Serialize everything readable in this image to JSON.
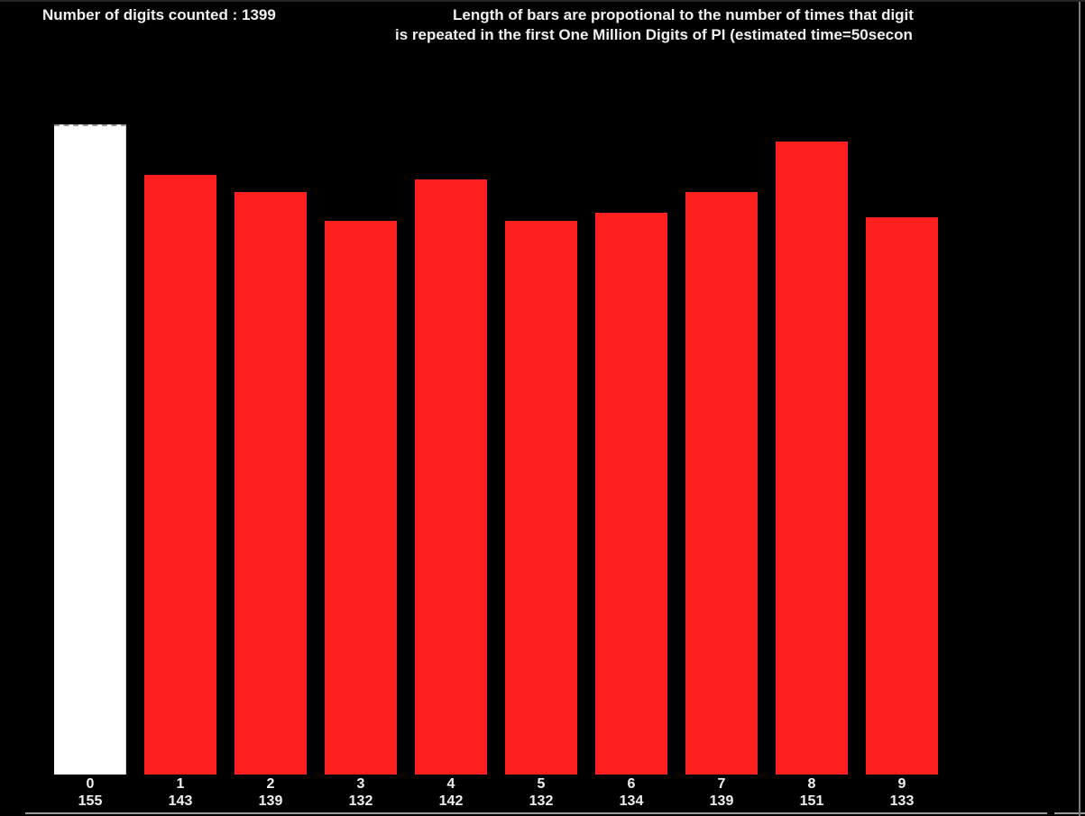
{
  "window": {
    "background": "#000000",
    "frame_edge_color": "#9a9a9a",
    "frame_right_color": "#7d7d7d"
  },
  "header": {
    "left_title": "Number of digits counted : 1399",
    "digits_counted": 1399,
    "right_title_line1": "Length of bars are propotional to the number of times that digit",
    "right_title_line2": "is repeated in the first One Million Digits of PI (estimated time=50secon",
    "text_color": "#f0f0f0"
  },
  "chart_data": {
    "type": "bar",
    "title": "Length of bars are propotional to the number of times that digit is repeated in the first One Million Digits of PI (estimated time=50secon",
    "categories": [
      "0",
      "1",
      "2",
      "3",
      "4",
      "5",
      "6",
      "7",
      "8",
      "9"
    ],
    "values": [
      155,
      143,
      139,
      132,
      142,
      132,
      134,
      139,
      151,
      133
    ],
    "xlabel": "",
    "ylabel": "",
    "legend": "none",
    "grid": false,
    "background": "#000000",
    "bar_color": "#ff1f1f",
    "highlight_bar": {
      "category": "0",
      "color": "#ffffff"
    },
    "label_color": "#f0f0f0"
  }
}
